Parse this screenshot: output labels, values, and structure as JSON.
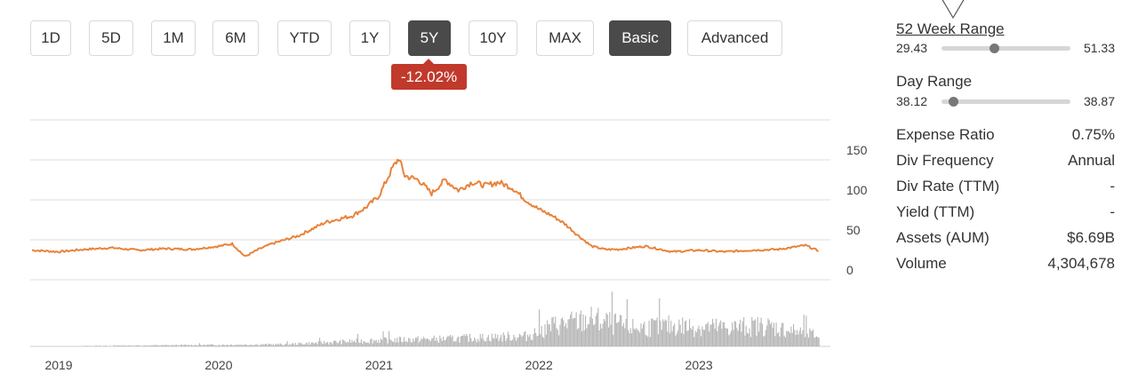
{
  "range_buttons": [
    {
      "label": "1D",
      "active": false
    },
    {
      "label": "5D",
      "active": false
    },
    {
      "label": "1M",
      "active": false
    },
    {
      "label": "6M",
      "active": false
    },
    {
      "label": "YTD",
      "active": false
    },
    {
      "label": "1Y",
      "active": false
    },
    {
      "label": "5Y",
      "active": true
    },
    {
      "label": "10Y",
      "active": false
    },
    {
      "label": "MAX",
      "active": false
    }
  ],
  "mode_buttons": [
    {
      "label": "Basic",
      "active": true
    },
    {
      "label": "Advanced",
      "active": false
    }
  ],
  "change_badge": "-12.02%",
  "colors": {
    "line": "#e8833a",
    "volume": "#b5b5b5",
    "badge": "#c1392b",
    "active_button": "#4a4a4a"
  },
  "week52": {
    "title": "52 Week Range",
    "low": "29.43",
    "high": "51.33",
    "current_fraction": 0.41
  },
  "day_range": {
    "title": "Day Range",
    "low": "38.12",
    "high": "38.87",
    "current_fraction": 0.09
  },
  "stats": [
    {
      "label": "Expense Ratio",
      "value": "0.75%"
    },
    {
      "label": "Div Frequency",
      "value": "Annual"
    },
    {
      "label": "Div Rate (TTM)",
      "value": "-"
    },
    {
      "label": "Yield (TTM)",
      "value": "-"
    },
    {
      "label": "Assets (AUM)",
      "value": "$6.69B"
    },
    {
      "label": "Volume",
      "value": "4,304,678"
    }
  ],
  "chart_data": {
    "type": "line",
    "x_ticks": [
      "2019",
      "2020",
      "2021",
      "2022",
      "2023"
    ],
    "y_ticks": [
      0,
      50,
      100,
      150
    ],
    "ylim": [
      0,
      200
    ],
    "grid": true,
    "series": [
      {
        "x": [
          "2018-11",
          "2019-01",
          "2019-03",
          "2019-05",
          "2019-07",
          "2019-09",
          "2019-11",
          "2020-01",
          "2020-02",
          "2020-03",
          "2020-04",
          "2020-05",
          "2020-07",
          "2020-09",
          "2020-11",
          "2020-12",
          "2021-01",
          "2021-02",
          "2021-02-15",
          "2021-03",
          "2021-04",
          "2021-05",
          "2021-06",
          "2021-07",
          "2021-08",
          "2021-09",
          "2021-10",
          "2021-11",
          "2021-12",
          "2022-01",
          "2022-02",
          "2022-03",
          "2022-04",
          "2022-05",
          "2022-06",
          "2022-07",
          "2022-09",
          "2022-11",
          "2023-01",
          "2023-03",
          "2023-05",
          "2023-07",
          "2023-09",
          "2023-10"
        ],
        "values": [
          37,
          35,
          38,
          40,
          37,
          39,
          38,
          42,
          45,
          29,
          38,
          45,
          55,
          72,
          80,
          90,
          105,
          140,
          152,
          130,
          125,
          108,
          125,
          112,
          122,
          118,
          122,
          115,
          100,
          88,
          80,
          70,
          55,
          42,
          38,
          38,
          42,
          35,
          37,
          35,
          37,
          38,
          43,
          36
        ]
      },
      {
        "name": "Volume",
        "x": [
          "2018-11",
          "2020-06",
          "2021-01",
          "2021-06",
          "2021-12",
          "2022-02",
          "2022-05",
          "2022-08",
          "2022-11",
          "2023-03",
          "2023-06",
          "2023-10"
        ],
        "values": [
          0,
          0.05,
          0.15,
          0.18,
          0.25,
          0.5,
          0.65,
          0.45,
          0.5,
          0.45,
          0.5,
          0.25
        ]
      }
    ]
  }
}
